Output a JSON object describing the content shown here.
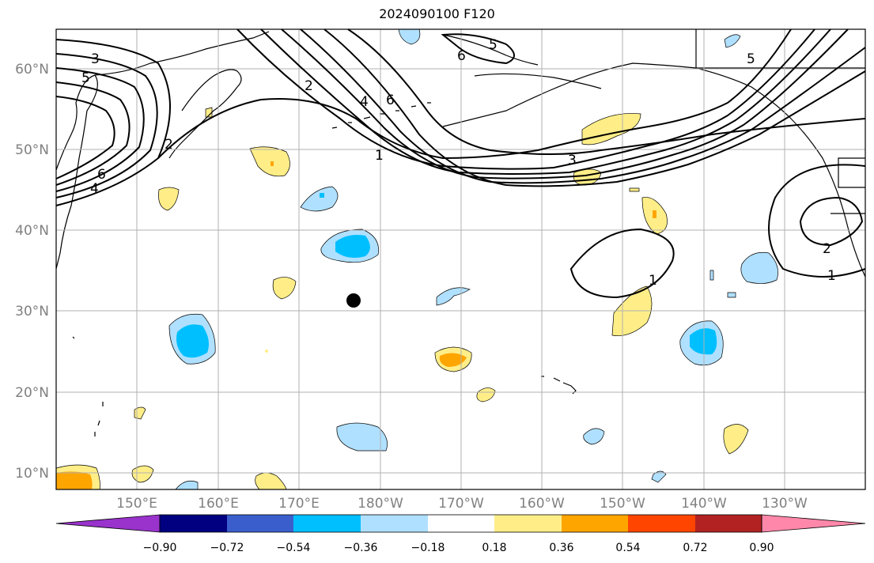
{
  "title": "2024090100 F120",
  "map": {
    "lat_ticks": [
      "60°N",
      "50°N",
      "40°N",
      "30°N",
      "20°N",
      "10°N"
    ],
    "lon_ticks": [
      "150°E",
      "160°E",
      "170°E",
      "180°W",
      "170°W",
      "160°W",
      "150°W",
      "140°W",
      "130°W"
    ],
    "contour_labels": [
      "3",
      "5",
      "2",
      "6",
      "4",
      "2",
      "4",
      "6",
      "1",
      "6",
      "5",
      "3",
      "5",
      "1",
      "2",
      "1"
    ],
    "marker": "storm-center-dot"
  },
  "colorbar": {
    "ticks": [
      "−0.90",
      "−0.72",
      "−0.54",
      "−0.36",
      "−0.18",
      "0.18",
      "0.36",
      "0.54",
      "0.72",
      "0.90"
    ],
    "colors": [
      "#9933cc",
      "#000080",
      "#3a5fcd",
      "#00bfff",
      "#b0e0ff",
      "#ffffff",
      "#ffee88",
      "#ffa500",
      "#ff4500",
      "#b22222",
      "#ff88aa"
    ]
  }
}
